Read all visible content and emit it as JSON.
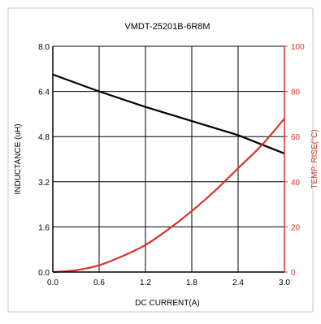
{
  "chart_data": {
    "type": "line",
    "title": "VMDT-25201B-6R8M",
    "xlabel": "DC CURRENT(A)",
    "ylabel_left": "INDUCTANCE (uH)",
    "ylabel_right": "TEMP. RISE(°C)",
    "xlim": [
      0.0,
      3.0
    ],
    "ylim_left": [
      0.0,
      8.0
    ],
    "ylim_right": [
      0,
      100
    ],
    "x_ticks": [
      "0.0",
      "0.6",
      "1.2",
      "1.8",
      "2.4",
      "3.0"
    ],
    "y_left_ticks": [
      "0.0",
      "1.6",
      "3.2",
      "4.8",
      "6.4",
      "8.0"
    ],
    "y_right_ticks": [
      "0",
      "20",
      "40",
      "60",
      "80",
      "100"
    ],
    "grid": true,
    "colors": {
      "inductance": "#000000",
      "temp_rise": "#d9342b",
      "right_axis": "#d9342b",
      "grid": "#000000"
    },
    "series": [
      {
        "key": "inductance",
        "axis": "left",
        "x": [
          0.0,
          0.6,
          1.2,
          1.8,
          2.4,
          3.0
        ],
        "values": [
          7.0,
          6.4,
          5.85,
          5.35,
          4.85,
          4.2
        ]
      },
      {
        "key": "temp_rise",
        "axis": "right",
        "x": [
          0.0,
          0.3,
          0.6,
          0.9,
          1.2,
          1.5,
          1.8,
          2.1,
          2.4,
          2.7,
          3.0
        ],
        "values": [
          0,
          0.8,
          3,
          7,
          12,
          19,
          27,
          36,
          46,
          56,
          68
        ]
      }
    ]
  }
}
